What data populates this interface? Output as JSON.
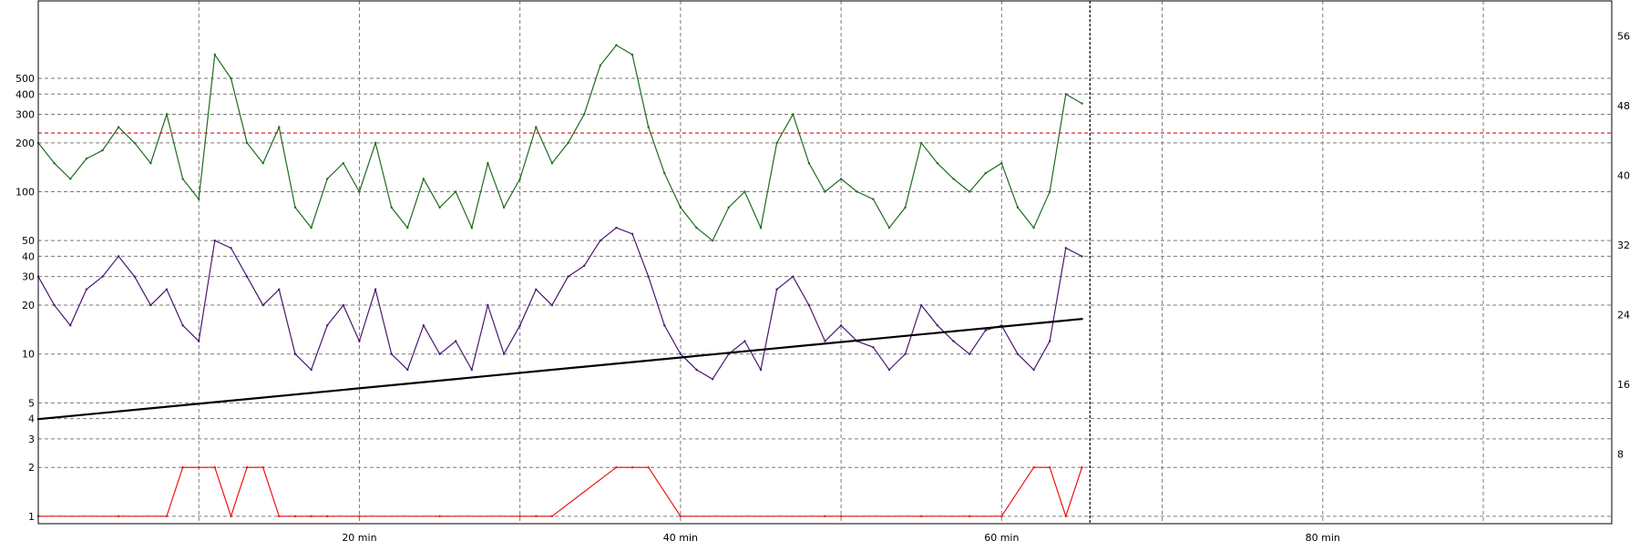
{
  "chart_data": {
    "type": "line",
    "x_axis": {
      "unit": "min",
      "range": [
        0,
        98
      ],
      "ticks": [
        {
          "value": 20,
          "label": "20 min"
        },
        {
          "value": 40,
          "label": "40 min"
        },
        {
          "value": 60,
          "label": "60 min"
        },
        {
          "value": 80,
          "label": "80 min"
        }
      ],
      "minor_grid": [
        10,
        30,
        50,
        70,
        90
      ]
    },
    "y_left": {
      "scale": "log",
      "range": [
        0.9,
        1500
      ],
      "ticks": [
        1,
        2,
        3,
        4,
        5,
        10,
        20,
        30,
        40,
        50,
        100,
        200,
        300,
        400,
        500
      ]
    },
    "y_right": {
      "scale": "linear",
      "range": [
        0,
        60
      ],
      "ticks": [
        8,
        16,
        24,
        32,
        40,
        48,
        56
      ]
    },
    "current_time": 65.5,
    "threshold": {
      "value": 230,
      "color": "#d11111"
    },
    "grid": true,
    "series": [
      {
        "color": "#1f6b1f",
        "axis": "left",
        "x": [
          0,
          1,
          2,
          3,
          4,
          5,
          6,
          7,
          8,
          9,
          10,
          11,
          12,
          13,
          14,
          15,
          16,
          17,
          18,
          19,
          20,
          21,
          22,
          23,
          24,
          25,
          26,
          27,
          28,
          29,
          30,
          31,
          32,
          33,
          34,
          35,
          36,
          37,
          38,
          39,
          40,
          41,
          42,
          43,
          44,
          45,
          46,
          47,
          48,
          49,
          50,
          51,
          52,
          53,
          54,
          55,
          56,
          57,
          58,
          59,
          60,
          61,
          62,
          63,
          64,
          65
        ],
        "y": [
          200,
          150,
          120,
          160,
          180,
          250,
          200,
          150,
          300,
          120,
          90,
          700,
          500,
          200,
          150,
          250,
          80,
          60,
          120,
          150,
          100,
          200,
          80,
          60,
          120,
          80,
          100,
          60,
          150,
          80,
          120,
          250,
          150,
          200,
          300,
          600,
          800,
          700,
          250,
          130,
          80,
          60,
          50,
          80,
          100,
          60,
          200,
          300,
          150,
          100,
          120,
          100,
          90,
          60,
          80,
          200,
          150,
          120,
          100,
          130,
          150,
          80,
          60,
          100,
          400,
          350
        ]
      },
      {
        "color": "#4b1670",
        "axis": "left",
        "x": [
          0,
          1,
          2,
          3,
          4,
          5,
          6,
          7,
          8,
          9,
          10,
          11,
          12,
          13,
          14,
          15,
          16,
          17,
          18,
          19,
          20,
          21,
          22,
          23,
          24,
          25,
          26,
          27,
          28,
          29,
          30,
          31,
          32,
          33,
          34,
          35,
          36,
          37,
          38,
          39,
          40,
          41,
          42,
          43,
          44,
          45,
          46,
          47,
          48,
          49,
          50,
          51,
          52,
          53,
          54,
          55,
          56,
          57,
          58,
          59,
          60,
          61,
          62,
          63,
          64,
          65
        ],
        "y": [
          30,
          20,
          15,
          25,
          30,
          40,
          30,
          20,
          25,
          15,
          12,
          50,
          45,
          30,
          20,
          25,
          10,
          8,
          15,
          20,
          12,
          25,
          10,
          8,
          15,
          10,
          12,
          8,
          20,
          10,
          15,
          25,
          20,
          30,
          35,
          50,
          60,
          55,
          30,
          15,
          10,
          8,
          7,
          10,
          12,
          8,
          25,
          30,
          20,
          12,
          15,
          12,
          11,
          8,
          10,
          20,
          15,
          12,
          10,
          14,
          15,
          10,
          8,
          12,
          45,
          40
        ]
      },
      {
        "color": "#000000",
        "axis": "right",
        "x": [
          0,
          65
        ],
        "y": [
          12.0,
          23.5
        ]
      },
      {
        "color": "#ee1111",
        "axis": "left",
        "x": [
          0,
          5,
          8,
          9,
          10,
          11,
          12,
          13,
          14,
          15,
          16,
          17,
          18,
          20,
          25,
          30,
          31,
          32,
          36,
          37,
          38,
          40,
          49,
          50,
          55,
          58,
          60,
          62,
          63,
          64,
          65
        ],
        "y": [
          1,
          1,
          1,
          2,
          2,
          2,
          1,
          2,
          2,
          1,
          1,
          1,
          1,
          1,
          1,
          1,
          1,
          1,
          2,
          2,
          2,
          1,
          1,
          1,
          1,
          1,
          1,
          2,
          2,
          1,
          2
        ]
      }
    ]
  }
}
